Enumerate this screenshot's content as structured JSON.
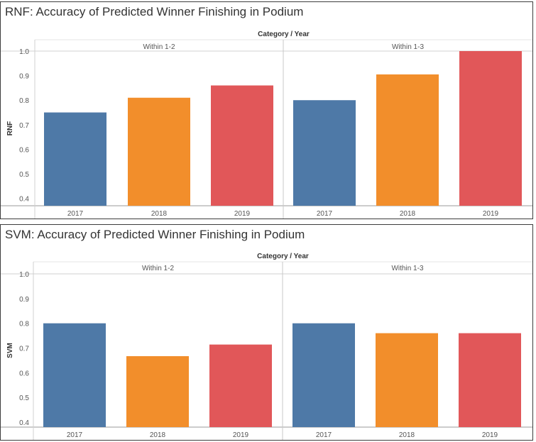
{
  "header_label": "Category / Year",
  "colors": {
    "2017": "#4e79a7",
    "2018": "#f28e2b",
    "2019": "#e15759"
  },
  "chart_data": [
    {
      "type": "bar",
      "title": "RNF: Accuracy of Predicted Winner Finishing in Podium",
      "ylabel": "RNF",
      "header": "Category / Year",
      "ylim": [
        0.37,
        1.0
      ],
      "yticks": [
        "1.0",
        "0.9",
        "0.8",
        "0.7",
        "0.6",
        "0.5",
        "0.4"
      ],
      "groups": [
        {
          "name": "Within 1-2",
          "categories": [
            "2017",
            "2018",
            "2019"
          ],
          "values": [
            0.75,
            0.81,
            0.86
          ]
        },
        {
          "name": "Within 1-3",
          "categories": [
            "2017",
            "2018",
            "2019"
          ],
          "values": [
            0.8,
            0.905,
            1.0
          ]
        }
      ]
    },
    {
      "type": "bar",
      "title": "SVM: Accuracy of Predicted Winner Finishing in Podium",
      "ylabel": "SVM",
      "header": "Category / Year",
      "ylim": [
        0.38,
        1.0
      ],
      "yticks": [
        "1.0",
        "0.9",
        "0.8",
        "0.7",
        "0.6",
        "0.5",
        "0.4"
      ],
      "groups": [
        {
          "name": "Within 1-2",
          "categories": [
            "2017",
            "2018",
            "2019"
          ],
          "values": [
            0.8,
            0.667,
            0.714
          ]
        },
        {
          "name": "Within 1-3",
          "categories": [
            "2017",
            "2018",
            "2019"
          ],
          "values": [
            0.8,
            0.76,
            0.76
          ]
        }
      ]
    }
  ]
}
